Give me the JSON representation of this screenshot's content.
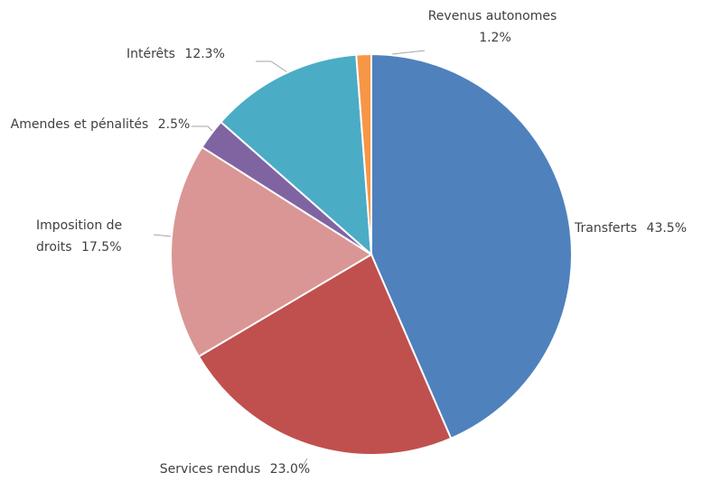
{
  "chart_data": {
    "type": "pie",
    "categories": [
      "Transferts",
      "Services rendus",
      "Imposition de droits",
      "Amendes et pénalités",
      "Intérêts",
      "Revenus autonomes"
    ],
    "values": [
      43.5,
      23.0,
      17.5,
      2.5,
      12.3,
      1.2
    ],
    "value_labels": [
      "43.5%",
      "23.0%",
      "17.5%",
      "2.5%",
      "12.3%",
      "1.2%"
    ],
    "colors": [
      "#4f81bd",
      "#c0504d",
      "#d99694",
      "#8064a2",
      "#4bacc6",
      "#f79646"
    ]
  }
}
